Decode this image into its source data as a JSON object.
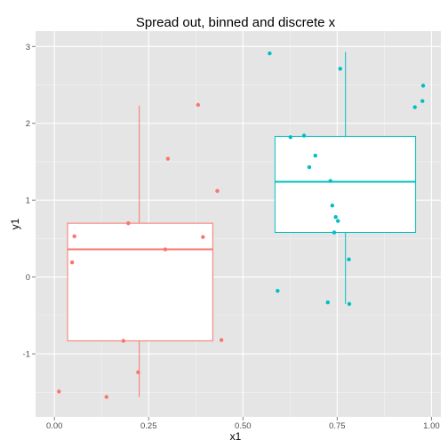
{
  "chart_data": {
    "type": "boxplot",
    "title": "Spread out, binned and discrete x",
    "xlabel": "x1",
    "ylabel": "y1",
    "xlim": [
      -0.05,
      1.025
    ],
    "ylim": [
      -1.82,
      3.2
    ],
    "xticks": [
      {
        "value": 0.0,
        "label": "0.00"
      },
      {
        "value": 0.25,
        "label": "0.25"
      },
      {
        "value": 0.5,
        "label": "0.50"
      },
      {
        "value": 0.75,
        "label": "0.75"
      },
      {
        "value": 1.0,
        "label": "1.00"
      }
    ],
    "yticks": [
      {
        "value": -1,
        "label": "-1"
      },
      {
        "value": 0,
        "label": "0"
      },
      {
        "value": 1,
        "label": "1"
      },
      {
        "value": 2,
        "label": "2"
      },
      {
        "value": 3,
        "label": "3"
      }
    ],
    "grid": true,
    "series": [
      {
        "color": "#F8766D",
        "box": {
          "xmin": 0.035,
          "xmax": 0.42,
          "x_whisker": 0.225,
          "q1": -0.83,
          "median": 0.36,
          "q3": 0.7,
          "whisker_low": -1.56,
          "whisker_high": 2.23
        },
        "points": [
          [
            0.012,
            -1.49
          ],
          [
            0.138,
            -1.56
          ],
          [
            0.222,
            -1.24
          ],
          [
            0.183,
            -0.83
          ],
          [
            0.443,
            -0.82
          ],
          [
            0.047,
            0.19
          ],
          [
            0.053,
            0.53
          ],
          [
            0.196,
            0.7
          ],
          [
            0.294,
            0.36
          ],
          [
            0.394,
            0.52
          ],
          [
            0.301,
            1.54
          ],
          [
            0.432,
            1.12
          ],
          [
            0.381,
            2.24
          ]
        ]
      },
      {
        "color": "#00BFC4",
        "box": {
          "xmin": 0.585,
          "xmax": 0.958,
          "x_whisker": 0.772,
          "q1": 0.58,
          "median": 1.24,
          "q3": 1.83,
          "whisker_low": -0.35,
          "whisker_high": 2.93
        },
        "points": [
          [
            0.571,
            2.91
          ],
          [
            0.758,
            2.71
          ],
          [
            0.978,
            2.49
          ],
          [
            0.976,
            2.29
          ],
          [
            0.956,
            2.21
          ],
          [
            0.626,
            1.82
          ],
          [
            0.662,
            1.84
          ],
          [
            0.692,
            1.58
          ],
          [
            0.676,
            1.43
          ],
          [
            0.732,
            1.25
          ],
          [
            0.737,
            0.93
          ],
          [
            0.746,
            0.78
          ],
          [
            0.752,
            0.73
          ],
          [
            0.742,
            0.58
          ],
          [
            0.781,
            0.23
          ],
          [
            0.592,
            -0.18
          ],
          [
            0.725,
            -0.33
          ],
          [
            0.782,
            -0.35
          ]
        ]
      }
    ]
  }
}
